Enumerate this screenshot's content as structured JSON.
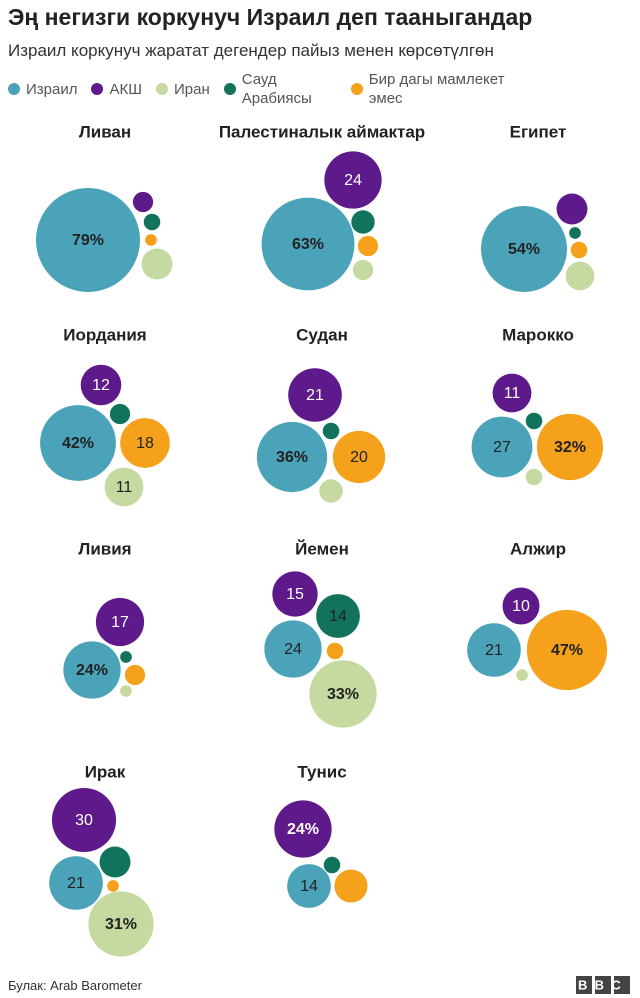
{
  "chart_data": {
    "type": "bubble",
    "title": "Эң негизги коркунуч Израил деп тааныгандар",
    "subtitle": "Израил коркунуч жаратат дегендер пайыз менен көрсөтүлгөн",
    "categories": [
      "Ливан",
      "Палестиналык аймактар",
      "Египет",
      "Иордания",
      "Судан",
      "Марокко",
      "Ливия",
      "Йемен",
      "Алжир",
      "Ирак",
      "Тунис"
    ],
    "series": [
      {
        "name": "Израил",
        "color": "#4ba3ba",
        "values": [
          79,
          63,
          54,
          42,
          36,
          27,
          24,
          24,
          21,
          21,
          14
        ],
        "value_labels": [
          "79%",
          "63%",
          "54%",
          "42%",
          "36%",
          "27",
          "24%",
          "24",
          "21",
          "21",
          "14"
        ]
      },
      {
        "name": "АКШ",
        "color": "#5e1a8a",
        "values": [
          3,
          24,
          7,
          12,
          21,
          11,
          17,
          15,
          10,
          30,
          24
        ],
        "value_labels": [
          null,
          "24",
          null,
          "12",
          "21",
          "11",
          "17",
          "15",
          "10",
          "30",
          "24%"
        ]
      },
      {
        "name": "Иран",
        "color": "#c6d9a0",
        "values": [
          7,
          3,
          6,
          11,
          4,
          2,
          1,
          33,
          1,
          31,
          null
        ],
        "value_labels": [
          null,
          null,
          null,
          "11",
          null,
          null,
          null,
          "33%",
          null,
          "31%",
          null
        ]
      },
      {
        "name": "Сауд Арабиясы",
        "color": "#11735b",
        "values": [
          2,
          4,
          1,
          3,
          2,
          2,
          1,
          14,
          null,
          7,
          2
        ],
        "value_labels": [
          null,
          null,
          null,
          null,
          null,
          null,
          null,
          "14",
          null,
          null,
          null
        ]
      },
      {
        "name": "Бир дагы мамлекет эмес",
        "color": "#f5a11c",
        "values": [
          1,
          3,
          2,
          18,
          20,
          32,
          3,
          2,
          47,
          1,
          8
        ],
        "value_labels": [
          null,
          null,
          null,
          "18",
          "20",
          "32%",
          null,
          null,
          "47%",
          null,
          null
        ]
      }
    ],
    "source": "Булак: Arab Barometer",
    "logo": "BBC"
  }
}
